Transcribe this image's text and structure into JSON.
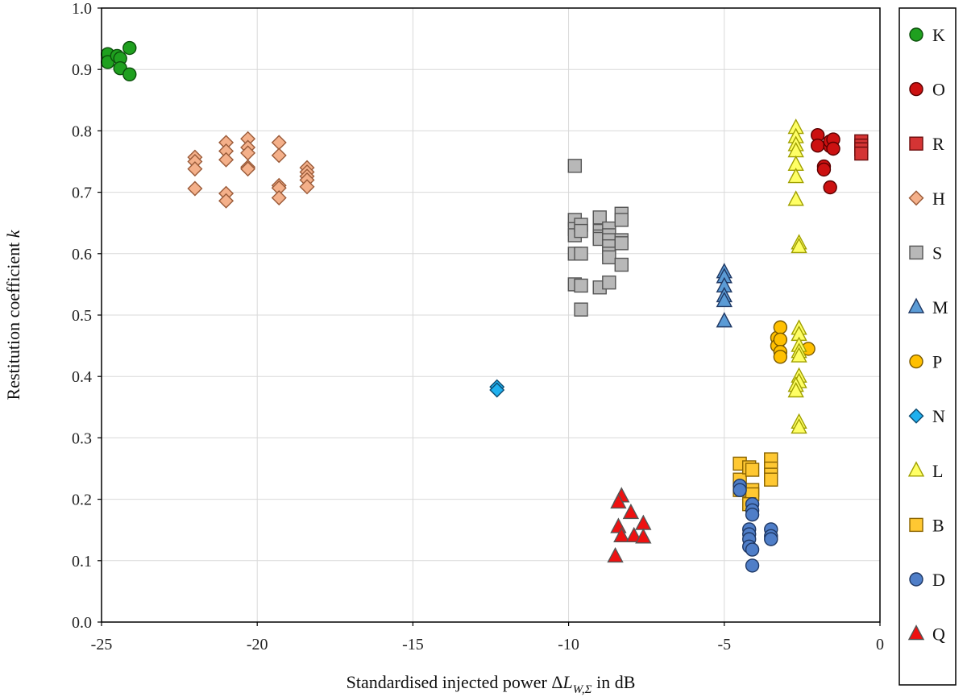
{
  "chart_data": {
    "type": "scatter",
    "title": "",
    "xlabel": "Standardised injected power ΔL_{W,Σ} in dB",
    "xlabel_parts": {
      "prefix": "Standardised injected power Δ",
      "var": "L",
      "sub": "W,Σ",
      "suffix": " in dB"
    },
    "ylabel": "Restitution coefficient k",
    "ylabel_parts": {
      "prefix": "Restitution coefficient ",
      "var": "k"
    },
    "xlim": [
      -25,
      0
    ],
    "ylim": [
      0,
      1
    ],
    "xticks": [
      -25,
      -20,
      -15,
      -10,
      -5,
      0
    ],
    "xtick_labels": [
      "-25",
      "-20",
      "-15",
      "-10",
      "-5",
      "0"
    ],
    "yticks": [
      0,
      0.1,
      0.2,
      0.3,
      0.4,
      0.5,
      0.6,
      0.7,
      0.8,
      0.9,
      1.0
    ],
    "ytick_labels": [
      "0.0",
      "0.1",
      "0.2",
      "0.3",
      "0.4",
      "0.5",
      "0.6",
      "0.7",
      "0.8",
      "0.9",
      "1.0"
    ],
    "grid": true,
    "legend_position": "right",
    "series": [
      {
        "name": "K",
        "marker": "circle",
        "color": "#1fa01f",
        "stroke": "#0b4f0b",
        "points": [
          [
            -24.8,
            0.925
          ],
          [
            -24.8,
            0.912
          ],
          [
            -24.5,
            0.922
          ],
          [
            -24.4,
            0.918
          ],
          [
            -24.4,
            0.902
          ],
          [
            -24.1,
            0.935
          ],
          [
            -24.1,
            0.892
          ]
        ]
      },
      {
        "name": "O",
        "marker": "circle",
        "color": "#cc1111",
        "stroke": "#5a0000",
        "points": [
          [
            -2.0,
            0.793
          ],
          [
            -2.0,
            0.776
          ],
          [
            -1.8,
            0.742
          ],
          [
            -1.8,
            0.737
          ],
          [
            -1.6,
            0.775
          ],
          [
            -1.6,
            0.783
          ],
          [
            -1.5,
            0.786
          ],
          [
            -1.5,
            0.771
          ],
          [
            -1.6,
            0.708
          ]
        ]
      },
      {
        "name": "R",
        "marker": "square",
        "color": "#d43434",
        "stroke": "#6b0c0c",
        "points": [
          [
            -0.6,
            0.783
          ],
          [
            -0.6,
            0.776
          ],
          [
            -0.6,
            0.77
          ],
          [
            -0.6,
            0.763
          ]
        ]
      },
      {
        "name": "H",
        "marker": "diamond",
        "color": "#f4b08a",
        "stroke": "#9a5a38",
        "points": [
          [
            -22.0,
            0.757
          ],
          [
            -22.0,
            0.75
          ],
          [
            -22.0,
            0.738
          ],
          [
            -22.0,
            0.706
          ],
          [
            -21.0,
            0.781
          ],
          [
            -21.0,
            0.767
          ],
          [
            -21.0,
            0.753
          ],
          [
            -21.0,
            0.698
          ],
          [
            -21.0,
            0.686
          ],
          [
            -20.3,
            0.787
          ],
          [
            -20.3,
            0.773
          ],
          [
            -20.3,
            0.764
          ],
          [
            -20.3,
            0.741
          ],
          [
            -20.3,
            0.738
          ],
          [
            -19.3,
            0.781
          ],
          [
            -19.3,
            0.76
          ],
          [
            -19.3,
            0.711
          ],
          [
            -19.3,
            0.707
          ],
          [
            -19.3,
            0.691
          ],
          [
            -18.4,
            0.74
          ],
          [
            -18.4,
            0.733
          ],
          [
            -18.4,
            0.726
          ],
          [
            -18.4,
            0.72
          ],
          [
            -18.4,
            0.709
          ]
        ]
      },
      {
        "name": "S",
        "marker": "square",
        "color": "#b8b8b8",
        "stroke": "#555555",
        "points": [
          [
            -9.8,
            0.743
          ],
          [
            -9.8,
            0.655
          ],
          [
            -9.8,
            0.64
          ],
          [
            -9.8,
            0.63
          ],
          [
            -9.8,
            0.6
          ],
          [
            -9.8,
            0.55
          ],
          [
            -9.6,
            0.647
          ],
          [
            -9.6,
            0.637
          ],
          [
            -9.6,
            0.6
          ],
          [
            -9.6,
            0.548
          ],
          [
            -9.6,
            0.509
          ],
          [
            -9.0,
            0.659
          ],
          [
            -9.0,
            0.637
          ],
          [
            -9.0,
            0.628
          ],
          [
            -9.0,
            0.624
          ],
          [
            -9.0,
            0.545
          ],
          [
            -8.7,
            0.641
          ],
          [
            -8.7,
            0.63
          ],
          [
            -8.7,
            0.622
          ],
          [
            -8.7,
            0.612
          ],
          [
            -8.7,
            0.6
          ],
          [
            -8.7,
            0.594
          ],
          [
            -8.7,
            0.553
          ],
          [
            -8.3,
            0.665
          ],
          [
            -8.3,
            0.655
          ],
          [
            -8.3,
            0.622
          ],
          [
            -8.3,
            0.617
          ],
          [
            -8.3,
            0.582
          ]
        ]
      },
      {
        "name": "M",
        "marker": "triangle",
        "color": "#5b9bd5",
        "stroke": "#1f3864",
        "points": [
          [
            -5.0,
            0.57
          ],
          [
            -5.0,
            0.562
          ],
          [
            -5.0,
            0.547
          ],
          [
            -5.0,
            0.531
          ],
          [
            -5.0,
            0.523
          ],
          [
            -5.0,
            0.49
          ]
        ]
      },
      {
        "name": "P",
        "marker": "circle",
        "color": "#ffc000",
        "stroke": "#7a5a00",
        "points": [
          [
            -3.3,
            0.463
          ],
          [
            -3.3,
            0.45
          ],
          [
            -3.2,
            0.48
          ],
          [
            -3.2,
            0.46
          ],
          [
            -3.2,
            0.44
          ],
          [
            -3.2,
            0.432
          ],
          [
            -2.3,
            0.445
          ]
        ]
      },
      {
        "name": "N",
        "marker": "diamond",
        "color": "#1fb0ee",
        "stroke": "#0b4a70",
        "points": [
          [
            -12.3,
            0.383
          ],
          [
            -12.3,
            0.378
          ]
        ]
      },
      {
        "name": "L",
        "marker": "triangle",
        "color": "#ffff66",
        "stroke": "#a0a000",
        "points": [
          [
            -2.7,
            0.805
          ],
          [
            -2.7,
            0.79
          ],
          [
            -2.7,
            0.777
          ],
          [
            -2.7,
            0.767
          ],
          [
            -2.7,
            0.745
          ],
          [
            -2.7,
            0.725
          ],
          [
            -2.7,
            0.688
          ],
          [
            -2.6,
            0.617
          ],
          [
            -2.6,
            0.611
          ],
          [
            -2.6,
            0.478
          ],
          [
            -2.6,
            0.468
          ],
          [
            -2.6,
            0.45
          ],
          [
            -2.6,
            0.44
          ],
          [
            -2.6,
            0.433
          ],
          [
            -2.6,
            0.4
          ],
          [
            -2.6,
            0.391
          ],
          [
            -2.7,
            0.385
          ],
          [
            -2.7,
            0.376
          ],
          [
            -2.6,
            0.325
          ],
          [
            -2.6,
            0.317
          ]
        ]
      },
      {
        "name": "B",
        "marker": "square",
        "color": "#ffc832",
        "stroke": "#8a6400",
        "points": [
          [
            -4.5,
            0.258
          ],
          [
            -4.5,
            0.232
          ],
          [
            -4.5,
            0.215
          ],
          [
            -4.2,
            0.252
          ],
          [
            -4.1,
            0.248
          ],
          [
            -4.1,
            0.215
          ],
          [
            -4.1,
            0.208
          ],
          [
            -4.2,
            0.192
          ],
          [
            -3.5,
            0.265
          ],
          [
            -3.5,
            0.25
          ],
          [
            -3.5,
            0.24
          ],
          [
            -3.5,
            0.232
          ]
        ]
      },
      {
        "name": "D",
        "marker": "circle",
        "color": "#4f7ec8",
        "stroke": "#1f3864",
        "points": [
          [
            -4.5,
            0.222
          ],
          [
            -4.5,
            0.215
          ],
          [
            -4.1,
            0.192
          ],
          [
            -4.1,
            0.182
          ],
          [
            -4.1,
            0.175
          ],
          [
            -4.2,
            0.151
          ],
          [
            -4.2,
            0.143
          ],
          [
            -4.2,
            0.135
          ],
          [
            -4.2,
            0.123
          ],
          [
            -4.1,
            0.118
          ],
          [
            -4.1,
            0.092
          ],
          [
            -3.5,
            0.151
          ],
          [
            -3.5,
            0.14
          ],
          [
            -3.5,
            0.135
          ]
        ]
      },
      {
        "name": "Q",
        "marker": "triangle",
        "color": "#ee1111",
        "stroke": "#555555",
        "points": [
          [
            -8.3,
            0.205
          ],
          [
            -8.4,
            0.195
          ],
          [
            -8.0,
            0.178
          ],
          [
            -8.4,
            0.155
          ],
          [
            -7.6,
            0.16
          ],
          [
            -8.3,
            0.14
          ],
          [
            -7.9,
            0.14
          ],
          [
            -7.6,
            0.138
          ],
          [
            -8.5,
            0.107
          ]
        ]
      }
    ]
  }
}
